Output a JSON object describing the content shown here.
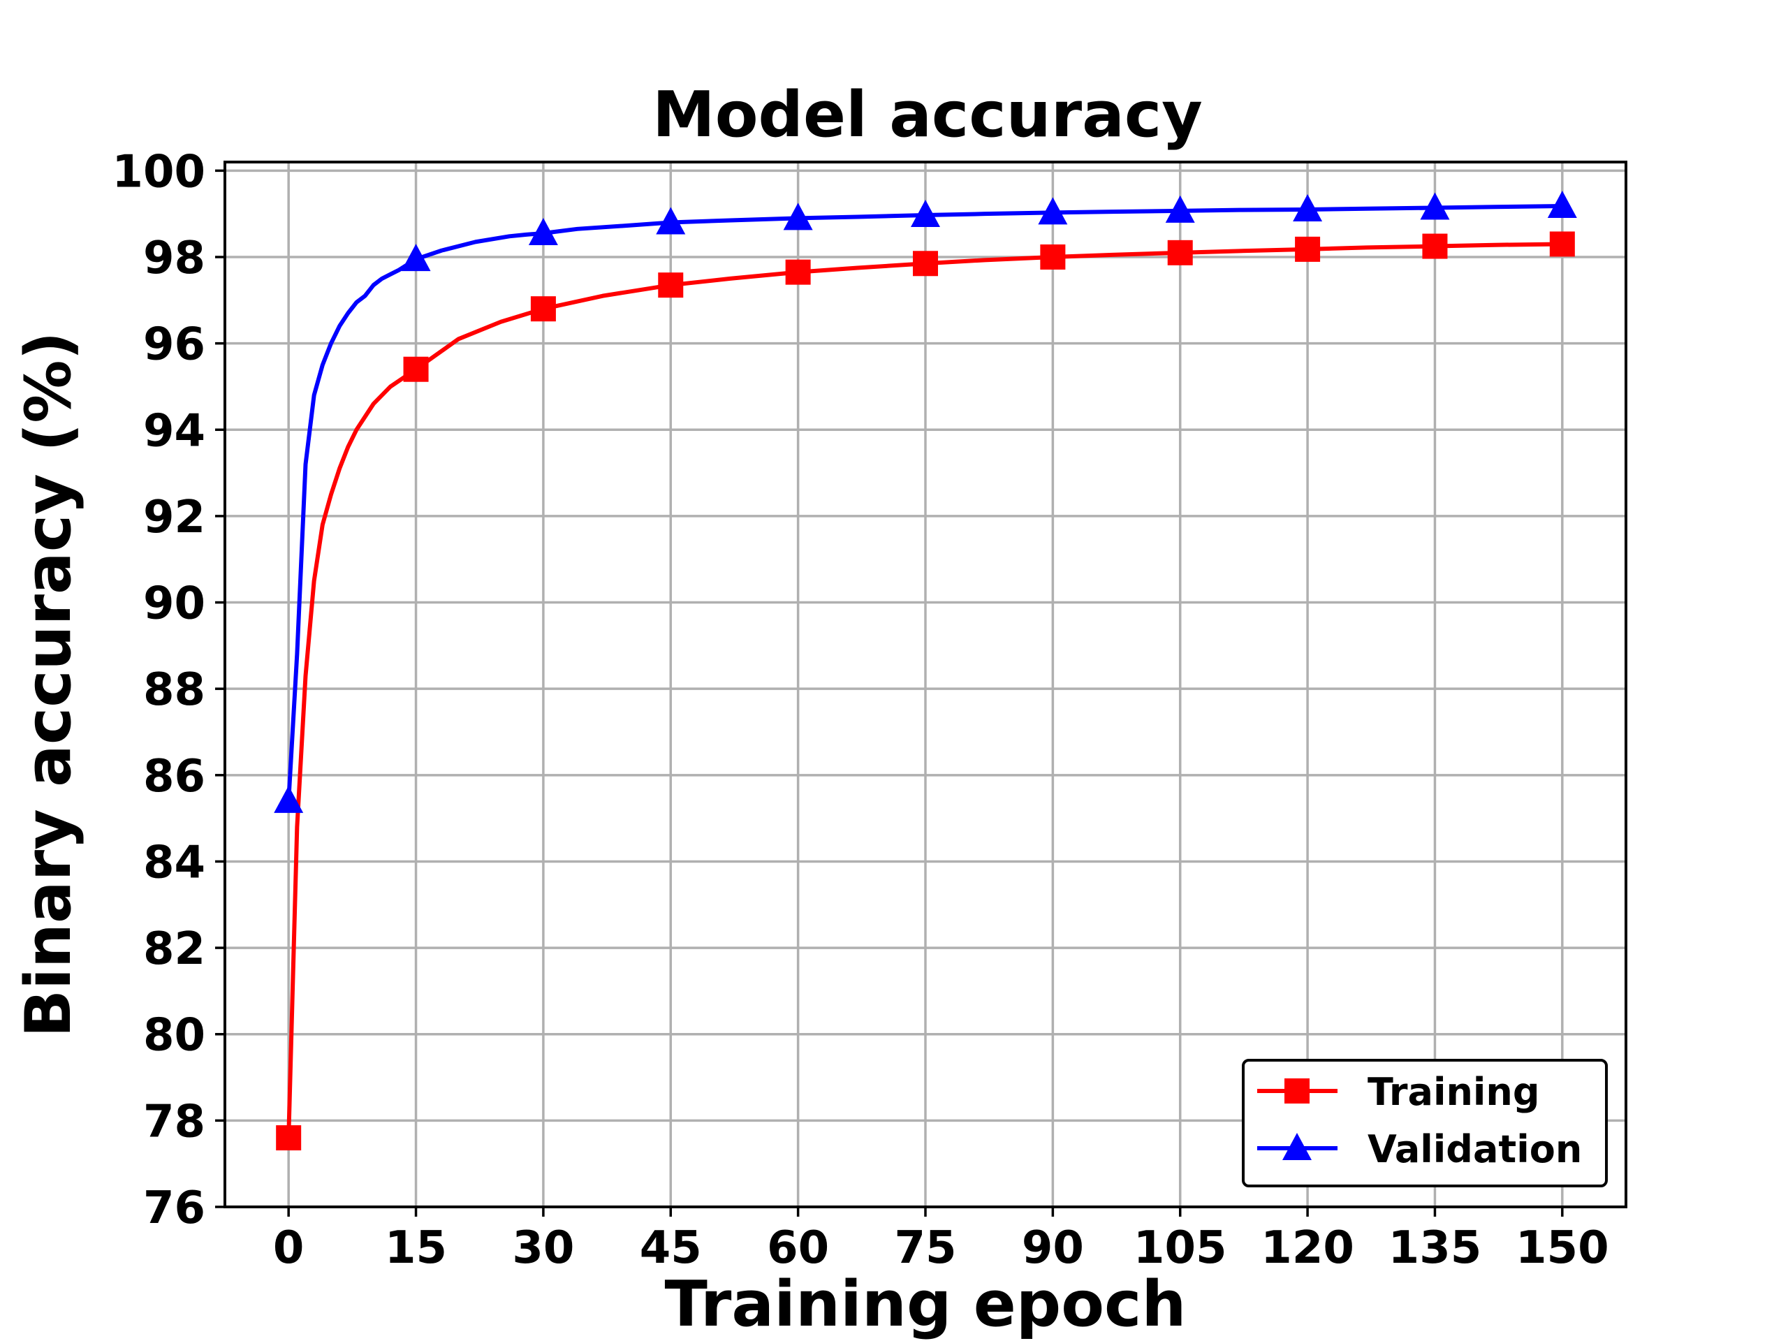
{
  "chart_data": {
    "type": "line",
    "title": "Model accuracy",
    "xlabel": "Training epoch",
    "ylabel": "Binary accuracy (%)",
    "xlim": [
      -7.5,
      157.5
    ],
    "ylim": [
      76,
      100.2
    ],
    "xticks": [
      0,
      15,
      30,
      45,
      60,
      75,
      90,
      105,
      120,
      135,
      150
    ],
    "yticks": [
      76,
      78,
      80,
      82,
      84,
      86,
      88,
      90,
      92,
      94,
      96,
      98,
      100
    ],
    "grid": true,
    "legend_position": "lower-right",
    "series": [
      {
        "name": "Training",
        "color": "#ff0000",
        "marker": "square",
        "marker_x": [
          0,
          15,
          30,
          45,
          60,
          75,
          90,
          105,
          120,
          135,
          150
        ],
        "x": [
          0,
          1,
          2,
          3,
          4,
          5,
          6,
          7,
          8,
          10,
          12,
          15,
          20,
          25,
          30,
          37,
          45,
          52,
          60,
          67,
          75,
          82,
          90,
          97,
          105,
          112,
          120,
          127,
          135,
          142,
          150
        ],
        "y": [
          77.6,
          84.8,
          88.3,
          90.5,
          91.8,
          92.5,
          93.1,
          93.6,
          94.0,
          94.6,
          95.0,
          95.4,
          96.1,
          96.5,
          96.8,
          97.1,
          97.35,
          97.5,
          97.65,
          97.75,
          97.85,
          97.93,
          98.0,
          98.05,
          98.1,
          98.14,
          98.18,
          98.22,
          98.25,
          98.28,
          98.3
        ]
      },
      {
        "name": "Validation",
        "color": "#0000ff",
        "marker": "triangle",
        "marker_x": [
          0,
          15,
          30,
          45,
          60,
          75,
          90,
          105,
          120,
          135,
          150
        ],
        "x": [
          0,
          1,
          2,
          3,
          4,
          5,
          6,
          7,
          8,
          9,
          10,
          11,
          12,
          13,
          15,
          18,
          22,
          26,
          28,
          30,
          34,
          40,
          45,
          52,
          60,
          67,
          75,
          82,
          90,
          97,
          105,
          112,
          120,
          127,
          135,
          142,
          150
        ],
        "y": [
          85.4,
          88.8,
          93.2,
          94.8,
          95.5,
          96.0,
          96.4,
          96.7,
          96.95,
          97.1,
          97.35,
          97.5,
          97.6,
          97.7,
          97.95,
          98.15,
          98.35,
          98.48,
          98.52,
          98.55,
          98.65,
          98.73,
          98.8,
          98.85,
          98.9,
          98.93,
          98.97,
          99.0,
          99.03,
          99.05,
          99.07,
          99.09,
          99.1,
          99.12,
          99.14,
          99.16,
          99.18
        ]
      }
    ]
  }
}
